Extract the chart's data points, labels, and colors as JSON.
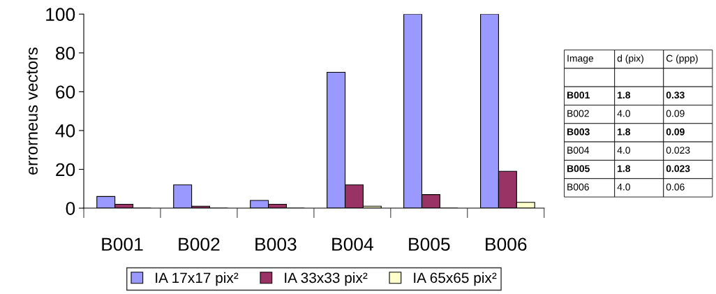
{
  "chart_data": [
    {
      "type": "bar",
      "ylabel": "errorneus vectors",
      "categories": [
        "B001",
        "B002",
        "B003",
        "B004",
        "B005",
        "B006"
      ],
      "series": [
        {
          "name": "IA 17x17 pix²",
          "color": "#9999ff",
          "values": [
            6,
            12,
            4,
            70,
            100,
            100
          ]
        },
        {
          "name": "IA 33x33 pix²",
          "color": "#993366",
          "values": [
            2,
            1,
            2,
            12,
            7,
            19
          ]
        },
        {
          "name": "IA 65x65 pix²",
          "color": "#ffffcc",
          "values": [
            0,
            0,
            0,
            1,
            0,
            3
          ]
        }
      ],
      "ylim": [
        0,
        100
      ],
      "yticks": [
        0,
        20,
        40,
        60,
        80,
        100
      ],
      "grid": false,
      "legend": "bottom"
    },
    {
      "type": "other",
      "categories": [
        "Image",
        "d (pix)",
        "C (ppp)"
      ],
      "cell_labels": [
        [
          null,
          null,
          null
        ],
        [
          "B001",
          "1.8",
          "0.33"
        ],
        [
          "B002",
          "4.0",
          "0.09"
        ],
        [
          "B003",
          "1.8",
          "0.09"
        ],
        [
          "B004",
          "4.0",
          "0.023"
        ],
        [
          "B005",
          "1.8",
          "0.023"
        ],
        [
          "B006",
          "4.0",
          "0.06"
        ]
      ]
    }
  ]
}
